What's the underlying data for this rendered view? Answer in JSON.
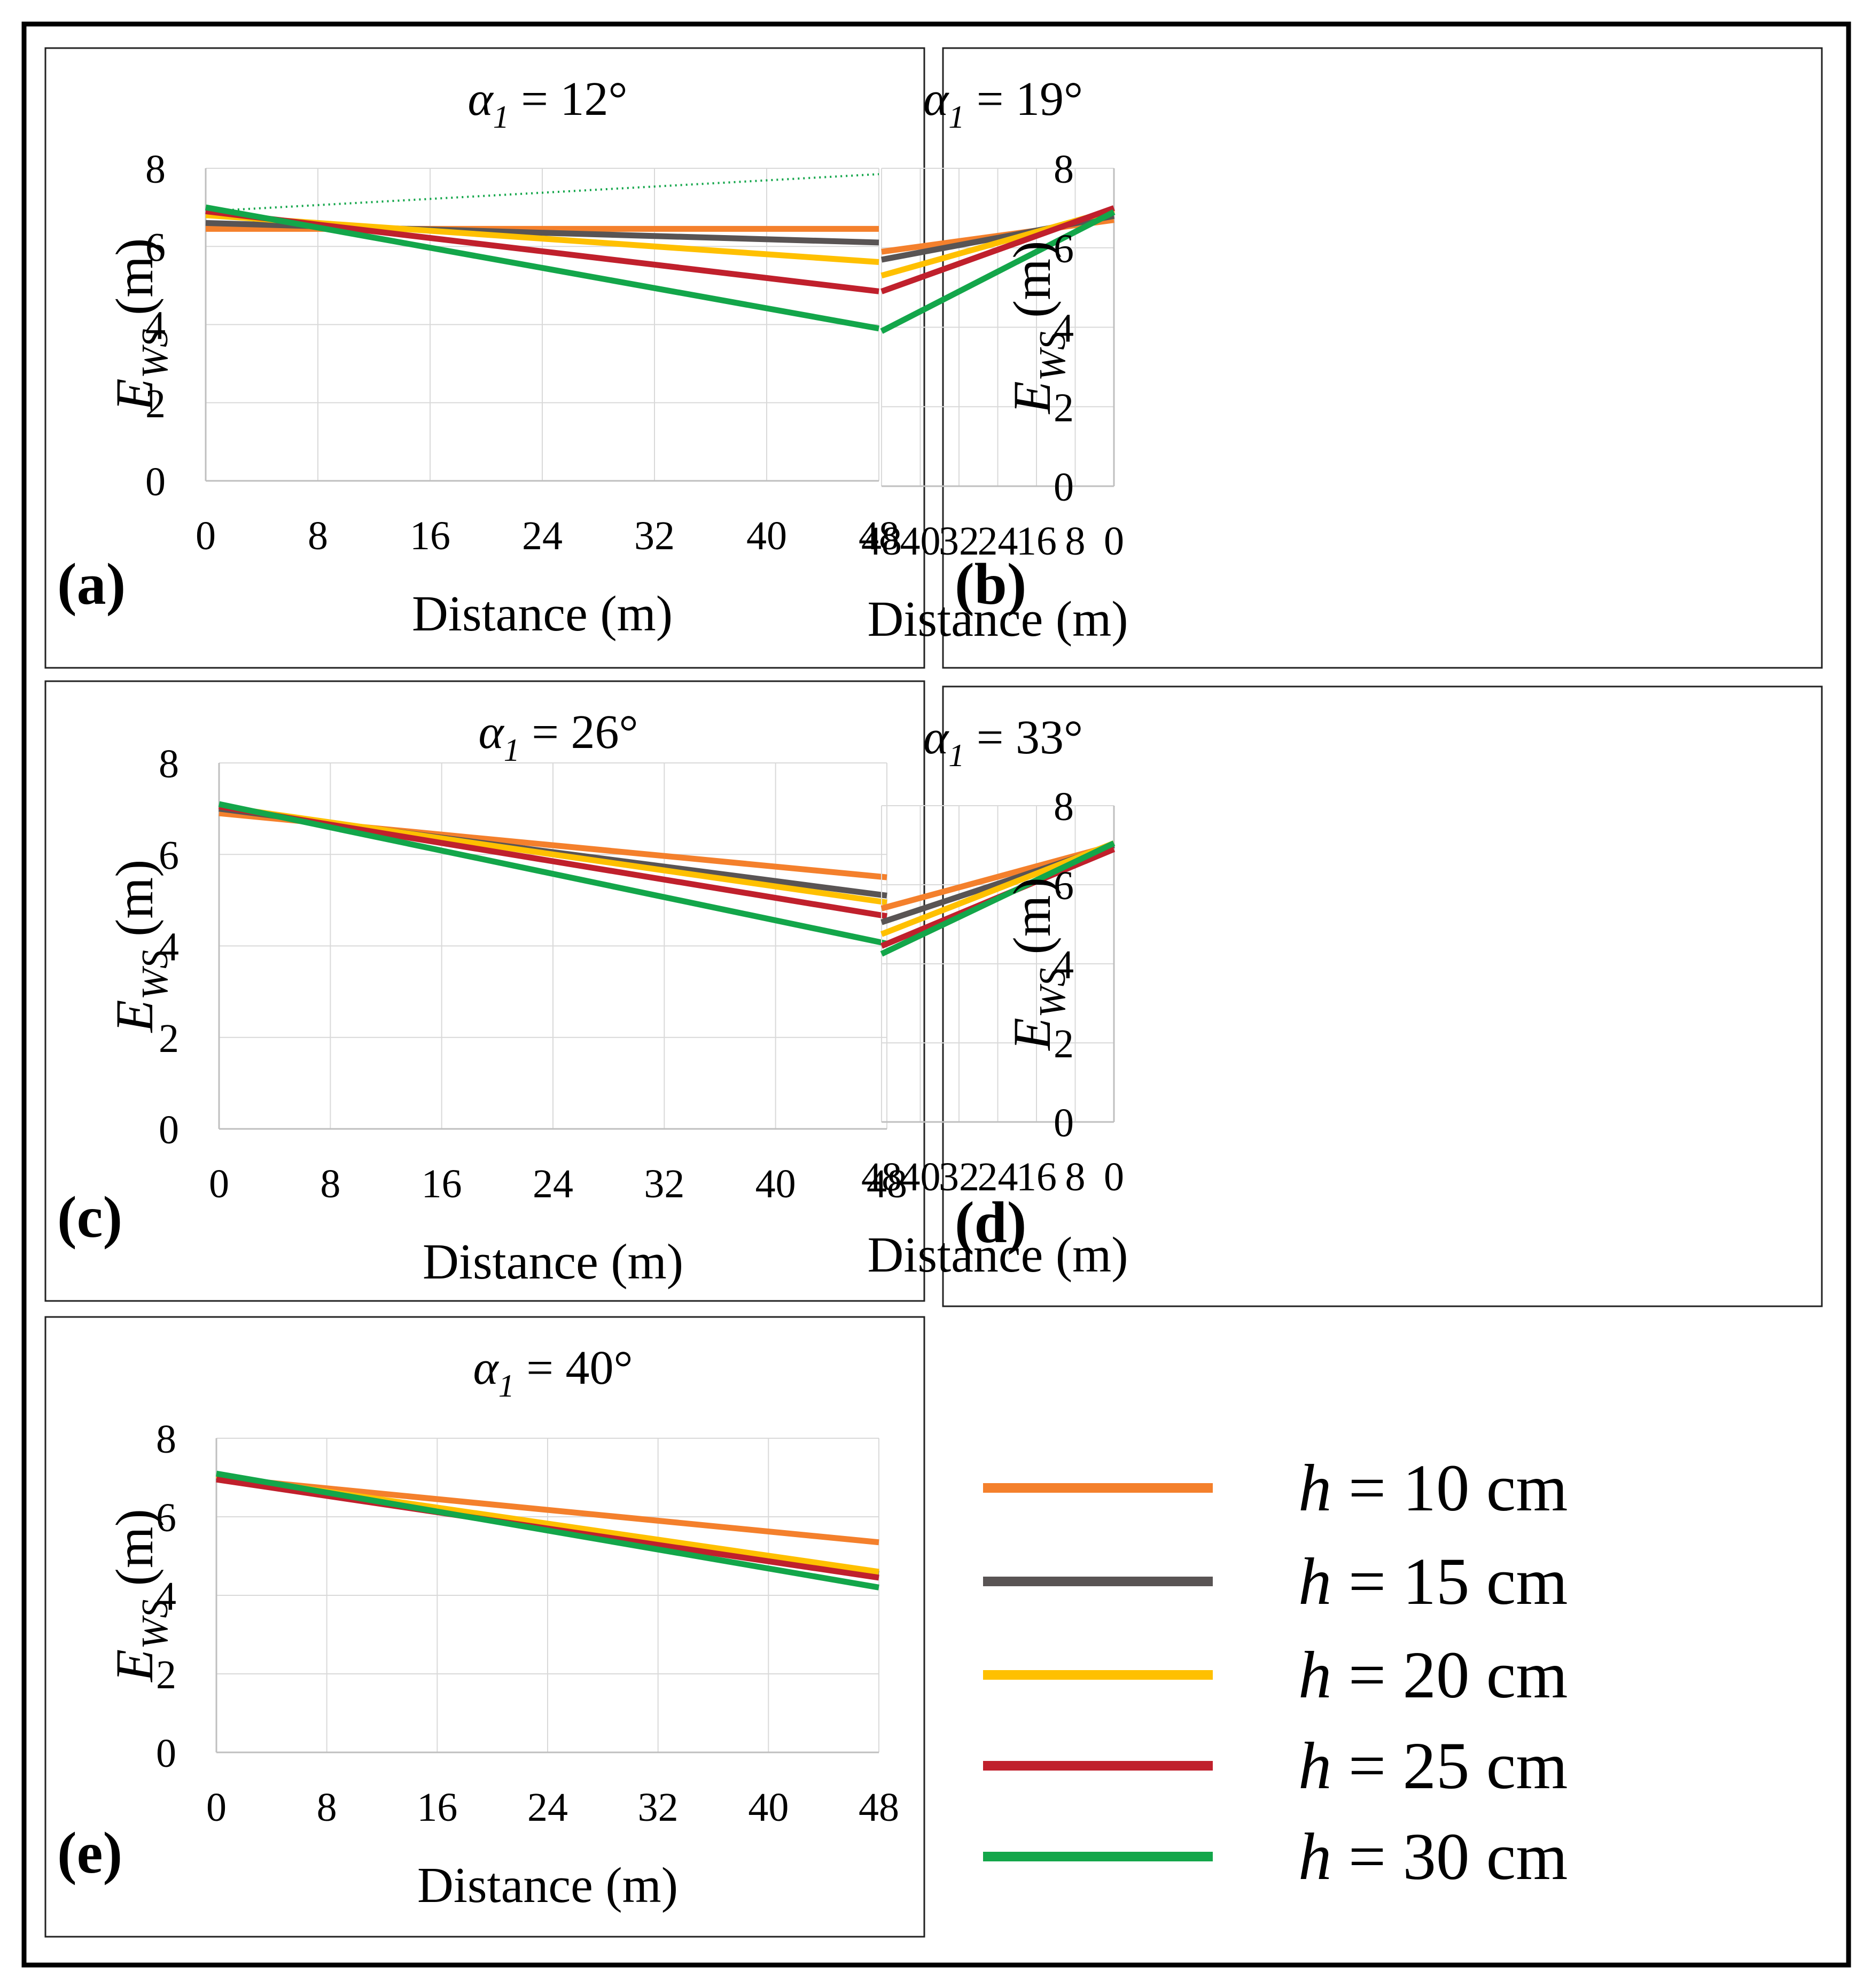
{
  "figure": {
    "series_colors": {
      "h10": "#F4802C",
      "h15": "#595454",
      "h20": "#FFC000",
      "h25": "#C0202C",
      "h30": "#13A64A"
    },
    "legend": [
      {
        "key": "h10",
        "var": "h",
        "text": "= 10 cm",
        "color": "#F4802C"
      },
      {
        "key": "h15",
        "var": "h",
        "text": "= 15 cm",
        "color": "#595454"
      },
      {
        "key": "h20",
        "var": "h",
        "text": "= 20 cm",
        "color": "#FFC000"
      },
      {
        "key": "h25",
        "var": "h",
        "text": "= 25 cm",
        "color": "#C0202C"
      },
      {
        "key": "h30",
        "var": "h",
        "text": "= 30 cm",
        "color": "#13A64A"
      }
    ]
  },
  "chart_data": [
    {
      "panel": "(a)",
      "type": "line",
      "title": {
        "symbol": "α",
        "subscript": "1",
        "value": "= 12°"
      },
      "xlabel": "Distance (m)",
      "ylabel": {
        "main": "E",
        "subscript": "WS",
        "unit": "(m)"
      },
      "xlim": [
        0,
        48
      ],
      "ylim": [
        0,
        8
      ],
      "xticks": [
        0,
        8,
        16,
        24,
        32,
        40,
        48
      ],
      "yticks": [
        0,
        2,
        4,
        6,
        8
      ],
      "grid": true,
      "series": [
        {
          "name": "h = 10 cm",
          "color": "#F4802C",
          "x": [
            0,
            48
          ],
          "y": [
            6.45,
            6.45
          ]
        },
        {
          "name": "h = 15 cm",
          "color": "#595454",
          "x": [
            0,
            48
          ],
          "y": [
            6.6,
            6.1
          ]
        },
        {
          "name": "h = 20 cm",
          "color": "#FFC000",
          "x": [
            0,
            48
          ],
          "y": [
            6.8,
            5.6
          ]
        },
        {
          "name": "h = 25 cm",
          "color": "#C0202C",
          "x": [
            0,
            48
          ],
          "y": [
            6.9,
            4.85
          ]
        },
        {
          "name": "h = 30 cm",
          "color": "#13A64A",
          "x": [
            0,
            48
          ],
          "y": [
            7.0,
            3.9
          ]
        }
      ],
      "annotations": [
        {
          "type": "dotted-trend",
          "color": "#13A64A",
          "x": [
            0,
            48
          ],
          "y": [
            6.9,
            7.85
          ]
        }
      ]
    },
    {
      "panel": "(b)",
      "type": "line",
      "title": {
        "symbol": "α",
        "subscript": "1",
        "value": "= 19°"
      },
      "xlabel": "Distance (m)",
      "ylabel": {
        "main": "E",
        "subscript": "WS",
        "unit": "(m)"
      },
      "xlim": [
        0,
        48
      ],
      "ylim": [
        0,
        8
      ],
      "xticks": [
        0,
        8,
        16,
        24,
        32,
        40,
        48
      ],
      "yticks": [
        0,
        2,
        4,
        6,
        8
      ],
      "grid": true,
      "series": [
        {
          "name": "h = 10 cm",
          "color": "#F4802C",
          "x": [
            0,
            48
          ],
          "y": [
            6.7,
            5.9
          ]
        },
        {
          "name": "h = 15 cm",
          "color": "#595454",
          "x": [
            0,
            48
          ],
          "y": [
            6.8,
            5.7
          ]
        },
        {
          "name": "h = 20 cm",
          "color": "#FFC000",
          "x": [
            0,
            48
          ],
          "y": [
            6.95,
            5.3
          ]
        },
        {
          "name": "h = 25 cm",
          "color": "#C0202C",
          "x": [
            0,
            48
          ],
          "y": [
            7.0,
            4.9
          ]
        },
        {
          "name": "h = 30 cm",
          "color": "#13A64A",
          "x": [
            0,
            48
          ],
          "y": [
            6.9,
            3.9
          ]
        }
      ]
    },
    {
      "panel": "(c)",
      "type": "line",
      "title": {
        "symbol": "α",
        "subscript": "1",
        "value": "= 26°"
      },
      "xlabel": "Distance (m)",
      "ylabel": {
        "main": "E",
        "subscript": "WS",
        "unit": "(m)"
      },
      "xlim": [
        0,
        48
      ],
      "ylim": [
        0,
        8
      ],
      "xticks": [
        0,
        8,
        16,
        24,
        32,
        40,
        48
      ],
      "yticks": [
        0,
        2,
        4,
        6,
        8
      ],
      "grid": true,
      "series": [
        {
          "name": "h = 10 cm",
          "color": "#F4802C",
          "x": [
            0,
            48
          ],
          "y": [
            6.9,
            5.5
          ]
        },
        {
          "name": "h = 15 cm",
          "color": "#595454",
          "x": [
            0,
            48
          ],
          "y": [
            7.0,
            5.1
          ]
        },
        {
          "name": "h = 20 cm",
          "color": "#FFC000",
          "x": [
            0,
            48
          ],
          "y": [
            7.05,
            4.95
          ]
        },
        {
          "name": "h = 25 cm",
          "color": "#C0202C",
          "x": [
            0,
            48
          ],
          "y": [
            7.05,
            4.65
          ]
        },
        {
          "name": "h = 30 cm",
          "color": "#13A64A",
          "x": [
            0,
            48
          ],
          "y": [
            7.1,
            4.05
          ]
        }
      ]
    },
    {
      "panel": "(d)",
      "type": "line",
      "title": {
        "symbol": "α",
        "subscript": "1",
        "value": "= 33°"
      },
      "xlabel": "Distance (m)",
      "ylabel": {
        "main": "E",
        "subscript": "WS",
        "unit": "(m)"
      },
      "xlim": [
        0,
        48
      ],
      "ylim": [
        0,
        8
      ],
      "xticks": [
        0,
        8,
        16,
        24,
        32,
        40,
        48
      ],
      "yticks": [
        0,
        2,
        4,
        6,
        8
      ],
      "grid": true,
      "series": [
        {
          "name": "h = 10 cm",
          "color": "#F4802C",
          "x": [
            0,
            48
          ],
          "y": [
            7.0,
            5.4
          ]
        },
        {
          "name": "h = 15 cm",
          "color": "#595454",
          "x": [
            0,
            48
          ],
          "y": [
            7.0,
            5.05
          ]
        },
        {
          "name": "h = 20 cm",
          "color": "#FFC000",
          "x": [
            0,
            48
          ],
          "y": [
            7.05,
            4.75
          ]
        },
        {
          "name": "h = 25 cm",
          "color": "#C0202C",
          "x": [
            0,
            48
          ],
          "y": [
            6.9,
            4.45
          ]
        },
        {
          "name": "h = 30 cm",
          "color": "#13A64A",
          "x": [
            0,
            48
          ],
          "y": [
            7.05,
            4.25
          ]
        }
      ]
    },
    {
      "panel": "(e)",
      "type": "line",
      "title": {
        "symbol": "α",
        "subscript": "1",
        "value": "= 40°"
      },
      "xlabel": "Distance (m)",
      "ylabel": {
        "main": "E",
        "subscript": "WS",
        "unit": "(m)"
      },
      "xlim": [
        0,
        48
      ],
      "ylim": [
        0,
        8
      ],
      "xticks": [
        0,
        8,
        16,
        24,
        32,
        40,
        48
      ],
      "yticks": [
        0,
        2,
        4,
        6,
        8
      ],
      "grid": true,
      "series": [
        {
          "name": "h = 10 cm",
          "color": "#F4802C",
          "x": [
            0,
            48
          ],
          "y": [
            7.0,
            5.35
          ]
        },
        {
          "name": "h = 15 cm",
          "color": "#595454",
          "x": [
            0,
            48
          ],
          "y": [
            7.0,
            4.55
          ]
        },
        {
          "name": "h = 20 cm",
          "color": "#FFC000",
          "x": [
            0,
            48
          ],
          "y": [
            7.05,
            4.6
          ]
        },
        {
          "name": "h = 25 cm",
          "color": "#C0202C",
          "x": [
            0,
            48
          ],
          "y": [
            6.95,
            4.45
          ]
        },
        {
          "name": "h = 30 cm",
          "color": "#13A64A",
          "x": [
            0,
            48
          ],
          "y": [
            7.1,
            4.2
          ]
        }
      ]
    }
  ]
}
